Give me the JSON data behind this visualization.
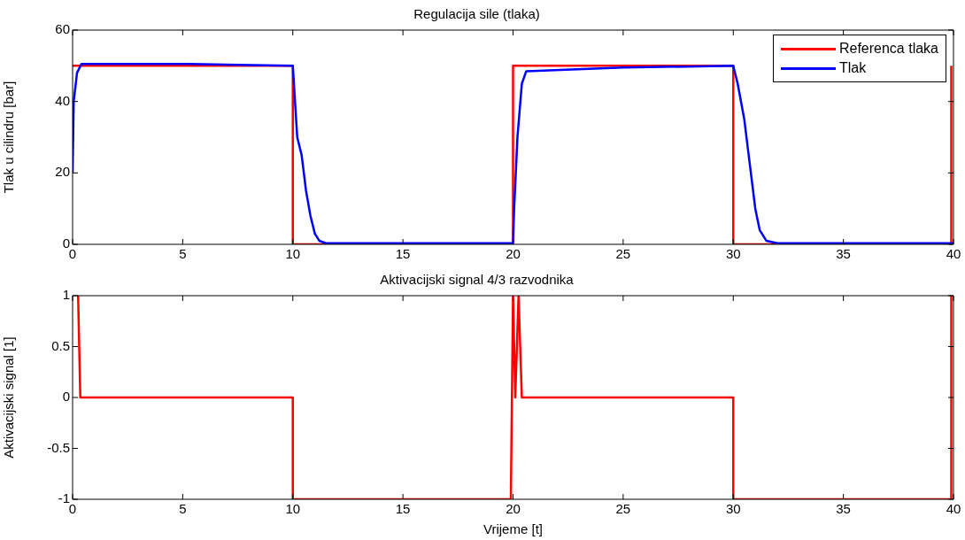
{
  "chart_data": [
    {
      "type": "line",
      "title": "Regulacija sile (tlaka)",
      "ylabel": "Tlak u cilindru [bar]",
      "xlim": [
        0,
        40
      ],
      "xticks": [
        0,
        5,
        10,
        15,
        20,
        25,
        30,
        35,
        40
      ],
      "ylim": [
        0,
        60
      ],
      "yticks": [
        0,
        20,
        40,
        60
      ],
      "grid": false,
      "legend": "top right",
      "series": [
        {
          "name": "Referenca tlaka",
          "color": "#ff0000",
          "x": [
            0,
            10,
            10,
            20,
            20,
            30,
            30,
            39.9,
            39.9
          ],
          "values": [
            50,
            50,
            0,
            0,
            50,
            50,
            0,
            0,
            50
          ]
        },
        {
          "name": "Tlak",
          "color": "#0000ff",
          "x": [
            0,
            0.05,
            0.2,
            0.4,
            5.3,
            10,
            10.1,
            10.2,
            10.4,
            10.6,
            10.8,
            11,
            11.2,
            11.5,
            20,
            20.05,
            20.2,
            20.4,
            20.6,
            25,
            30,
            30.2,
            30.5,
            30.8,
            31,
            31.2,
            31.5,
            32,
            40
          ],
          "values": [
            20,
            40,
            48,
            50.5,
            50.5,
            50,
            40,
            30,
            25,
            15,
            8,
            3,
            1,
            0.3,
            0.3,
            10,
            30,
            45,
            48.5,
            49.5,
            50,
            45,
            35,
            20,
            10,
            4,
            1,
            0.3,
            0.3
          ]
        }
      ]
    },
    {
      "type": "line",
      "title": "Aktivacijski signal 4/3 razvodnika",
      "xlabel": "Vrijeme [t]",
      "ylabel": "Aktivacijski signal [1]",
      "xlim": [
        0,
        40
      ],
      "xticks": [
        0,
        5,
        10,
        15,
        20,
        25,
        30,
        35,
        40
      ],
      "ylim": [
        -1,
        1
      ],
      "yticks": [
        -1,
        -0.5,
        0,
        0.5,
        1
      ],
      "grid": false,
      "series": [
        {
          "color": "#ff0000",
          "x": [
            0.25,
            0.35,
            10,
            10,
            19.9,
            20,
            20.1,
            20.25,
            20.4,
            30,
            30,
            39.9,
            39.9
          ],
          "values": [
            1,
            0,
            0,
            -1,
            -1,
            1,
            0,
            1,
            0,
            0,
            -1,
            -1,
            1
          ]
        }
      ]
    }
  ]
}
